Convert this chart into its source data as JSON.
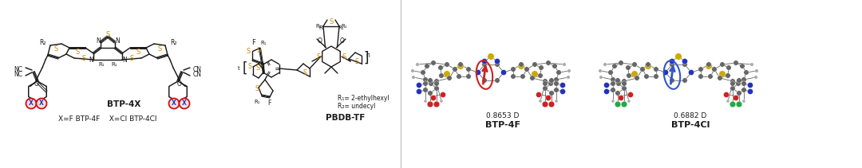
{
  "figsize": [
    10.8,
    2.11
  ],
  "dpi": 100,
  "background_color": "#ffffff",
  "text_color": "#1a1a1a",
  "bond_color": "#1a1a1a",
  "S_color": "#cc8800",
  "N_color": "#1a1a1a",
  "O_color": "#1a1a1a",
  "F_color": "#1a1a1a",
  "atom_C": "#777777",
  "atom_N": "#2233bb",
  "atom_S": "#ccaa00",
  "atom_O": "#cc2222",
  "atom_F": "#cc2222",
  "atom_Cl": "#22aa44",
  "atom_H": "#aaaaaa",
  "mol1_ellipse_color": "#cc2222",
  "mol1_arrow_color": "#cc2222",
  "mol1_dipole": "0.8653 D",
  "mol1_name": "BTP-4F",
  "mol2_ellipse_color": "#3355cc",
  "mol2_arrow_color": "#3355cc",
  "mol2_dipole": "0.6882 D",
  "mol2_name": "BTP-4Cl"
}
